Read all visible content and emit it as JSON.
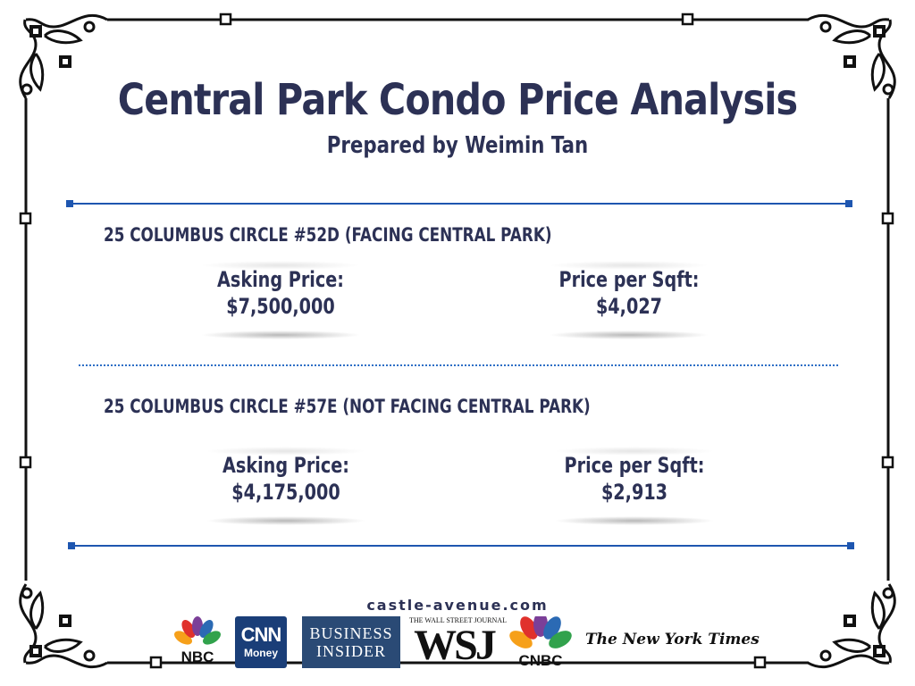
{
  "header": {
    "title": "Central Park Condo Price Analysis",
    "subtitle": "Prepared by Weimin Tan"
  },
  "sections": [
    {
      "title": "25 COLUMBUS CIRCLE #52D (FACING CENTRAL PARK)",
      "asking_label": "Asking Price:",
      "asking_value": "$7,500,000",
      "ppsf_label": "Price per Sqft:",
      "ppsf_value": "$4,027"
    },
    {
      "title": "25 COLUMBUS CIRCLE #57E (NOT FACING CENTRAL PARK)",
      "asking_label": "Asking Price:",
      "asking_value": "$4,175,000",
      "ppsf_label": "Price per Sqft:",
      "ppsf_value": "$2,913"
    }
  ],
  "footer": {
    "website": "castle-avenue.com",
    "logos": {
      "nbc": "NBC",
      "cnn_top": "CNN",
      "cnn_bottom": "Money",
      "bi_line1": "BUSINESS",
      "bi_line2": "INSIDER",
      "wsj_small": "THE WALL STREET JOURNAL",
      "wsj_big": "WSJ",
      "cnbc": "CNBC",
      "nyt": "The New York Times"
    }
  },
  "colors": {
    "text": "#2c3155",
    "rule": "#1e56b0",
    "cnn_bg": "#1a3e78",
    "bi_bg": "#2a4a75"
  }
}
